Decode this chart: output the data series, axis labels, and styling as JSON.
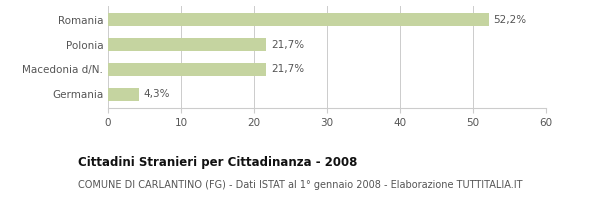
{
  "categories": [
    "Romania",
    "Polonia",
    "Macedonia d/N.",
    "Germania"
  ],
  "values": [
    52.2,
    21.7,
    21.7,
    4.3
  ],
  "labels": [
    "52,2%",
    "21,7%",
    "21,7%",
    "4,3%"
  ],
  "bar_color": "#c5d4a0",
  "xlim": [
    0,
    60
  ],
  "xticks": [
    0,
    10,
    20,
    30,
    40,
    50,
    60
  ],
  "title": "Cittadini Stranieri per Cittadinanza - 2008",
  "subtitle": "COMUNE DI CARLANTINO (FG) - Dati ISTAT al 1° gennaio 2008 - Elaborazione TUTTITALIA.IT",
  "title_fontsize": 8.5,
  "subtitle_fontsize": 7.0,
  "label_fontsize": 7.5,
  "ytick_fontsize": 7.5,
  "xtick_fontsize": 7.5,
  "background_color": "#ffffff",
  "grid_color": "#cccccc",
  "bar_height": 0.5
}
